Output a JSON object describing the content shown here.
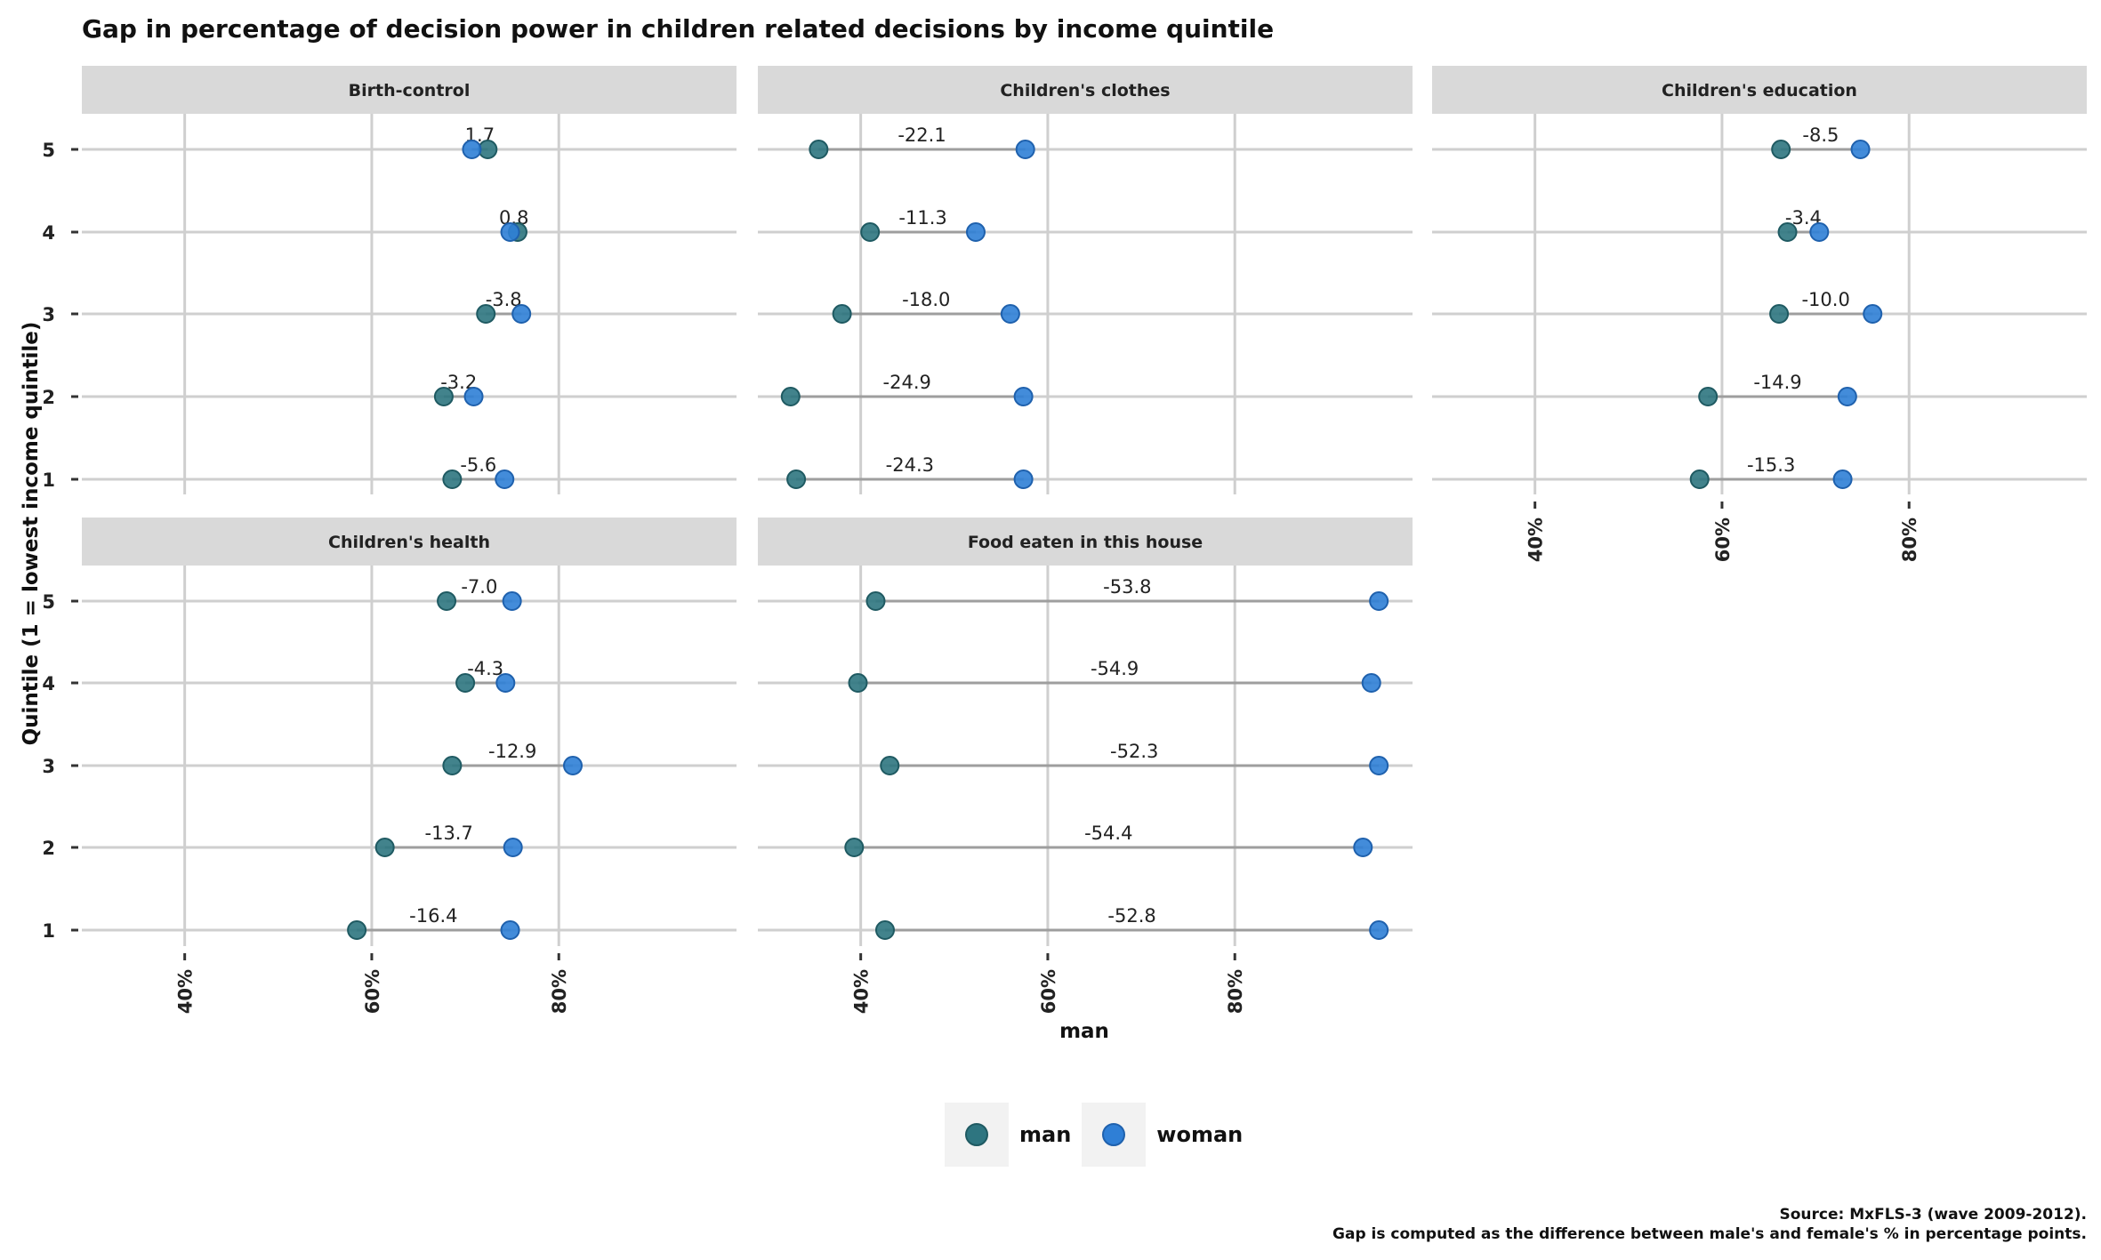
{
  "chart_data": {
    "type": "dumbbell",
    "title": "Gap in percentage of decision power in children related decisions by income quintile",
    "xlabel": "man",
    "ylabel": "Quintile (1 = lowest income quintile)",
    "x_ticks": [
      "40%",
      "60%",
      "80%"
    ],
    "x_tick_values": [
      0.4,
      0.6,
      0.8
    ],
    "xlim": [
      0.29,
      0.99
    ],
    "y_ticks": [
      1,
      2,
      3,
      4,
      5
    ],
    "grid": true,
    "legend_position": "bottom",
    "legend": [
      {
        "name": "man",
        "color": "#2e7580"
      },
      {
        "name": "woman",
        "color": "#2f7fd6"
      }
    ],
    "caption": [
      "Source: MxFLS-3 (wave 2009-2012).",
      "Gap is computed as the difference between male's and female's % in percentage points."
    ],
    "panels": [
      {
        "title": "Birth-control",
        "quintiles": [
          5,
          4,
          3,
          2,
          1
        ],
        "man": [
          0.724,
          0.756,
          0.722,
          0.677,
          0.686
        ],
        "woman": [
          0.707,
          0.748,
          0.76,
          0.709,
          0.742
        ],
        "gap_labels": [
          "1.7",
          "0.8",
          "-3.8",
          "-3.2",
          "-5.6"
        ]
      },
      {
        "title": "Children's clothes",
        "quintiles": [
          5,
          4,
          3,
          2,
          1
        ],
        "man": [
          0.355,
          0.41,
          0.38,
          0.325,
          0.331
        ],
        "woman": [
          0.576,
          0.523,
          0.56,
          0.574,
          0.574
        ],
        "gap_labels": [
          "-22.1",
          "-11.3",
          "-18.0",
          "-24.9",
          "-24.3"
        ]
      },
      {
        "title": "Children's education",
        "quintiles": [
          5,
          4,
          3,
          2,
          1
        ],
        "man": [
          0.663,
          0.67,
          0.661,
          0.585,
          0.576
        ],
        "woman": [
          0.748,
          0.704,
          0.761,
          0.734,
          0.729
        ],
        "gap_labels": [
          "-8.5",
          "-3.4",
          "-10.0",
          "-14.9",
          "-15.3"
        ]
      },
      {
        "title": "Children's health",
        "quintiles": [
          5,
          4,
          3,
          2,
          1
        ],
        "man": [
          0.68,
          0.7,
          0.686,
          0.614,
          0.584
        ],
        "woman": [
          0.75,
          0.743,
          0.815,
          0.751,
          0.748
        ],
        "gap_labels": [
          "-7.0",
          "-4.3",
          "-12.9",
          "-13.7",
          "-16.4"
        ]
      },
      {
        "title": "Food eaten in this house",
        "quintiles": [
          5,
          4,
          3,
          2,
          1
        ],
        "man": [
          0.416,
          0.397,
          0.431,
          0.393,
          0.426
        ],
        "woman": [
          0.954,
          0.946,
          0.954,
          0.937,
          0.954
        ],
        "gap_labels": [
          "-53.8",
          "-54.9",
          "-52.3",
          "-54.4",
          "-52.8"
        ]
      }
    ]
  }
}
